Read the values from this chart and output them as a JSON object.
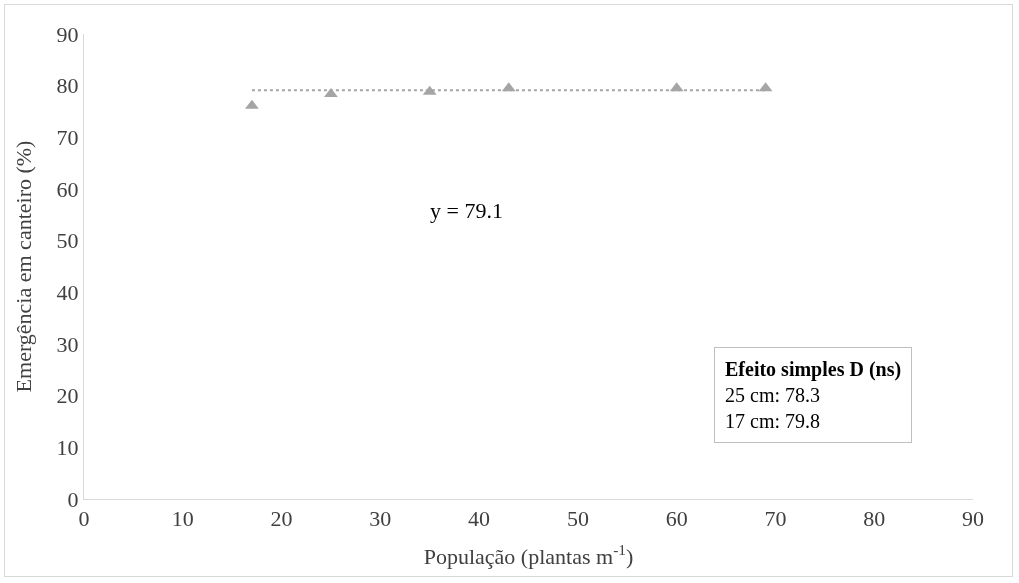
{
  "chart_data": {
    "type": "scatter",
    "xlabel": "População (plantas m$^{-1}$)",
    "ylabel": "Emergência em canteiro (%)",
    "x": [
      17,
      25,
      35,
      43,
      60,
      69
    ],
    "series": [
      {
        "color": "#a5a5a5",
        "values": [
          76.1,
          78.4,
          78.8,
          79.5,
          79.5,
          79.5
        ]
      },
      {
        "type": "line",
        "x": [
          17,
          69
        ],
        "color": "#a5a5a5",
        "line_style": "dotted",
        "marker": "none",
        "values": [
          79.1,
          79.1
        ]
      }
    ],
    "marker": "triangle",
    "xlim": [
      0,
      90
    ],
    "xticks": [
      0,
      10,
      20,
      30,
      40,
      50,
      60,
      70,
      80,
      90
    ],
    "ylim": [
      0,
      90
    ],
    "yticks": [
      0,
      10,
      20,
      30,
      40,
      50,
      60,
      70,
      80,
      90
    ],
    "grid": false,
    "annotations": [
      "y = 79.1",
      "Efeito simples D (ns)\n25 cm: 78.3\n17 cm: 79.8"
    ]
  }
}
